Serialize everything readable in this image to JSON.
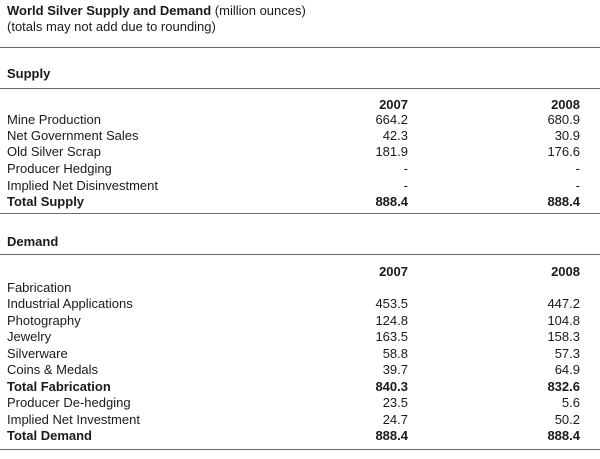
{
  "header": {
    "title_bold": "World Silver Supply and Demand",
    "title_rest": " (million ounces)",
    "subtitle": "(totals may not add due to rounding)"
  },
  "supply": {
    "title": "Supply",
    "years": [
      "2007",
      "2008"
    ],
    "rows": [
      {
        "label": "Mine Production",
        "v2007": "664.2",
        "v2008": "680.9"
      },
      {
        "label": "Net Government Sales",
        "v2007": "42.3",
        "v2008": "30.9"
      },
      {
        "label": "Old Silver Scrap",
        "v2007": "181.9",
        "v2008": "176.6"
      },
      {
        "label": "Producer Hedging",
        "v2007": "-",
        "v2008": "-"
      },
      {
        "label": "Implied Net Disinvestment",
        "v2007": "-",
        "v2008": "-"
      },
      {
        "label": "Total Supply",
        "v2007": "888.4",
        "v2008": "888.4"
      }
    ]
  },
  "demand": {
    "title": "Demand",
    "years": [
      "2007",
      "2008"
    ],
    "subheading": "Fabrication",
    "rows": [
      {
        "label": "Industrial Applications",
        "v2007": "453.5",
        "v2008": "447.2"
      },
      {
        "label": "Photography",
        "v2007": "124.8",
        "v2008": "104.8"
      },
      {
        "label": "Jewelry",
        "v2007": "163.5",
        "v2008": "158.3"
      },
      {
        "label": "Silverware",
        "v2007": "58.8",
        "v2008": "57.3"
      },
      {
        "label": "Coins & Medals",
        "v2007": "39.7",
        "v2008": "64.9"
      },
      {
        "label": "Total Fabrication",
        "v2007": "840.3",
        "v2008": "832.6"
      },
      {
        "label": "Producer De-hedging",
        "v2007": "23.5",
        "v2008": "5.6"
      },
      {
        "label": "Implied Net Investment",
        "v2007": "24.7",
        "v2008": "50.2"
      },
      {
        "label": "Total Demand",
        "v2007": "888.4",
        "v2008": "888.4"
      }
    ]
  }
}
